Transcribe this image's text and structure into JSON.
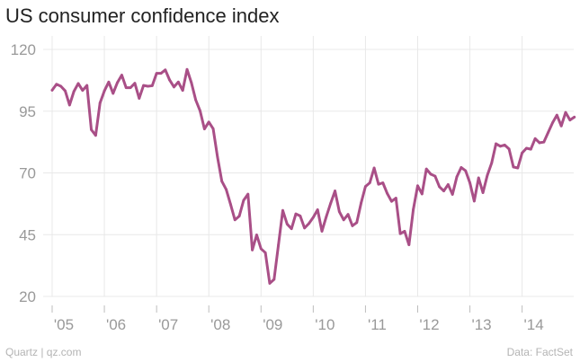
{
  "title": "US consumer confidence index",
  "footer": {
    "source_left": "Quartz | qz.com",
    "source_right": "Data: FactSet"
  },
  "colors": {
    "line": "#a94f87",
    "grid": "#e8e8e8",
    "tick": "#999999"
  },
  "chart_data": {
    "type": "line",
    "title": "US consumer confidence index",
    "xlabel": "",
    "ylabel": "",
    "ylim": [
      20,
      120
    ],
    "yticks": [
      120,
      95,
      70,
      45,
      20
    ],
    "xlim": [
      2005.0,
      2014.85
    ],
    "xticks": [
      {
        "value": 2005,
        "label": "'05"
      },
      {
        "value": 2006,
        "label": "'06"
      },
      {
        "value": 2007,
        "label": "'07"
      },
      {
        "value": 2008,
        "label": "'08"
      },
      {
        "value": 2009,
        "label": "'09"
      },
      {
        "value": 2010,
        "label": "'10"
      },
      {
        "value": 2011,
        "label": "'11"
      },
      {
        "value": 2012,
        "label": "'12"
      },
      {
        "value": 2013,
        "label": "'13"
      },
      {
        "value": 2014,
        "label": "'14"
      }
    ],
    "series": [
      {
        "name": "US consumer confidence index",
        "start": 2005.0,
        "step": 0.08333,
        "values": [
          103.5,
          105.9,
          105.1,
          103.2,
          97.5,
          103.0,
          106.2,
          103.4,
          105.4,
          87.5,
          85.2,
          98.3,
          103.2,
          106.8,
          102.2,
          106.6,
          109.6,
          104.5,
          104.5,
          106.3,
          100.2,
          105.4,
          105.1,
          105.3,
          110.3,
          110.3,
          111.7,
          107.6,
          104.8,
          106.8,
          103.4,
          111.9,
          106.5,
          99.5,
          95.1,
          87.8,
          90.6,
          87.9,
          76.4,
          66.6,
          63.3,
          57.3,
          51.0,
          52.5,
          58.9,
          61.4,
          38.8,
          44.9,
          39.3,
          37.7,
          25.3,
          26.9,
          40.8,
          54.8,
          49.3,
          47.4,
          53.4,
          52.6,
          47.7,
          49.5,
          52.0,
          55.1,
          46.4,
          52.3,
          57.7,
          62.7,
          54.3,
          51.0,
          53.2,
          48.6,
          49.9,
          57.8,
          64.5,
          66.0,
          72.0,
          65.4,
          66.0,
          61.7,
          58.5,
          59.8,
          45.4,
          46.4,
          40.9,
          55.2,
          64.8,
          61.5,
          71.6,
          69.5,
          68.7,
          64.4,
          62.7,
          65.3,
          61.3,
          68.4,
          72.2,
          70.9,
          66.0,
          58.6,
          68.0,
          62.0,
          69.0,
          74.0,
          81.8,
          80.8,
          81.3,
          79.7,
          72.4,
          72.0,
          78.1,
          80.0,
          79.6,
          83.9,
          82.2,
          82.5,
          86.4,
          90.3,
          93.4,
          89.0,
          94.5,
          91.4,
          92.6
        ]
      }
    ]
  }
}
